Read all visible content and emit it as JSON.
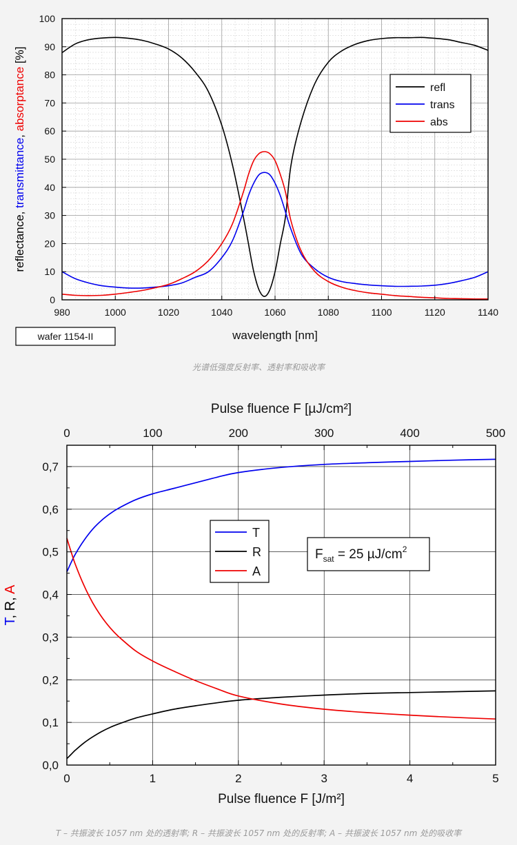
{
  "chart_data": [
    {
      "type": "line",
      "xlabel": "wavelength [nm]",
      "ylabel_parts": [
        {
          "text": "reflectance, ",
          "color": "#000000"
        },
        {
          "text": "transmittance",
          "color": "#0000ee"
        },
        {
          "text": ", ",
          "color": "#000000"
        },
        {
          "text": "absorptance",
          "color": "#ee0000"
        },
        {
          "text": " [%]",
          "color": "#000000"
        }
      ],
      "xlim": [
        980,
        1140
      ],
      "ylim": [
        0,
        100
      ],
      "xticks": [
        980,
        1000,
        1020,
        1040,
        1060,
        1080,
        1100,
        1120,
        1140
      ],
      "yticks": [
        0,
        10,
        20,
        30,
        40,
        50,
        60,
        70,
        80,
        90,
        100
      ],
      "grid": true,
      "legend_position": "top-right",
      "sample_label": "wafer 1154-II",
      "series": [
        {
          "name": "refl",
          "color": "#000000",
          "x": [
            980,
            985,
            990,
            995,
            1000,
            1005,
            1010,
            1015,
            1020,
            1025,
            1030,
            1035,
            1040,
            1044,
            1048,
            1050,
            1052,
            1054,
            1056,
            1058,
            1060,
            1062,
            1064,
            1066,
            1070,
            1075,
            1080,
            1085,
            1090,
            1095,
            1100,
            1105,
            1110,
            1115,
            1120,
            1125,
            1130,
            1135,
            1140
          ],
          "y": [
            87.9,
            91.0,
            92.5,
            93.1,
            93.3,
            93.0,
            92.3,
            91.0,
            89.2,
            86.0,
            81.0,
            74.0,
            62.0,
            48.0,
            30.0,
            20.0,
            10.0,
            3.5,
            1.2,
            3.5,
            10.0,
            20.0,
            30.0,
            48.0,
            64.0,
            77.0,
            84.5,
            88.5,
            90.8,
            92.2,
            92.9,
            93.2,
            93.2,
            93.3,
            93.0,
            92.5,
            91.5,
            90.5,
            88.7
          ]
        },
        {
          "name": "trans",
          "color": "#0000ee",
          "x": [
            980,
            985,
            990,
            995,
            1000,
            1005,
            1010,
            1015,
            1020,
            1025,
            1030,
            1035,
            1040,
            1044,
            1048,
            1050,
            1052,
            1054,
            1056,
            1058,
            1060,
            1062,
            1064,
            1066,
            1070,
            1075,
            1080,
            1085,
            1090,
            1095,
            1100,
            1105,
            1110,
            1115,
            1120,
            1125,
            1130,
            1135,
            1140
          ],
          "y": [
            10.0,
            7.5,
            6.0,
            5.0,
            4.5,
            4.2,
            4.2,
            4.5,
            5.0,
            6.0,
            8.0,
            10.0,
            15.0,
            21.0,
            31.0,
            37.0,
            41.5,
            44.5,
            45.3,
            44.5,
            41.5,
            37.0,
            31.0,
            25.0,
            16.0,
            11.0,
            8.0,
            6.5,
            5.8,
            5.3,
            5.0,
            4.8,
            4.8,
            4.9,
            5.2,
            5.8,
            6.8,
            8.0,
            10.0
          ]
        },
        {
          "name": "abs",
          "color": "#ee0000",
          "x": [
            980,
            985,
            990,
            995,
            1000,
            1005,
            1010,
            1015,
            1020,
            1025,
            1030,
            1035,
            1040,
            1044,
            1048,
            1050,
            1052,
            1054,
            1056,
            1058,
            1060,
            1062,
            1064,
            1066,
            1070,
            1075,
            1080,
            1085,
            1090,
            1095,
            1100,
            1105,
            1110,
            1115,
            1120,
            1125,
            1130,
            1135,
            1140
          ],
          "y": [
            2.0,
            1.6,
            1.5,
            1.6,
            2.0,
            2.6,
            3.3,
            4.3,
            5.5,
            7.5,
            10.0,
            14.0,
            20.0,
            27.0,
            38.0,
            44.5,
            49.5,
            52.0,
            52.7,
            52.0,
            49.5,
            44.5,
            38.0,
            28.0,
            17.0,
            10.0,
            6.5,
            4.5,
            3.3,
            2.5,
            2.0,
            1.5,
            1.2,
            0.9,
            0.7,
            0.5,
            0.4,
            0.3,
            0.3
          ]
        }
      ]
    },
    {
      "type": "line",
      "xlabel": "Pulse fluence F [J/m²]",
      "x2label": "Pulse fluence F [µJ/cm²]",
      "ylabel_parts": [
        {
          "text": "T",
          "color": "#0000ee"
        },
        {
          "text": ", ",
          "color": "#000000"
        },
        {
          "text": "R",
          "color": "#000000"
        },
        {
          "text": ", ",
          "color": "#000000"
        },
        {
          "text": "A",
          "color": "#ee0000"
        }
      ],
      "xlim": [
        0,
        5
      ],
      "x2lim": [
        0,
        500
      ],
      "ylim": [
        0,
        0.75
      ],
      "xticks": [
        0,
        1,
        2,
        3,
        4,
        5
      ],
      "x2ticks": [
        0,
        100,
        200,
        300,
        400,
        500
      ],
      "yticks": [
        "0,0",
        "0,1",
        "0,2",
        "0,3",
        "0,4",
        "0,5",
        "0,6",
        "0,7"
      ],
      "grid": true,
      "legend_position": "center-left",
      "annotation": {
        "prefix": "F",
        "sub": "sat",
        "text": " = 25 µJ/cm",
        "sup": "2"
      },
      "series": [
        {
          "name": "T",
          "color": "#0000ee",
          "x": [
            0,
            0.05,
            0.1,
            0.2,
            0.3,
            0.4,
            0.5,
            0.6,
            0.8,
            1.0,
            1.25,
            1.5,
            1.75,
            2.0,
            2.5,
            3.0,
            3.5,
            4.0,
            4.5,
            5.0
          ],
          "y": [
            0.453,
            0.475,
            0.495,
            0.527,
            0.553,
            0.573,
            0.589,
            0.602,
            0.622,
            0.636,
            0.649,
            0.662,
            0.675,
            0.686,
            0.698,
            0.705,
            0.709,
            0.712,
            0.715,
            0.717
          ]
        },
        {
          "name": "R",
          "color": "#000000",
          "x": [
            0,
            0.05,
            0.1,
            0.2,
            0.3,
            0.4,
            0.5,
            0.6,
            0.8,
            1.0,
            1.25,
            1.5,
            1.75,
            2.0,
            2.5,
            3.0,
            3.5,
            4.0,
            4.5,
            5.0
          ],
          "y": [
            0.015,
            0.025,
            0.035,
            0.052,
            0.066,
            0.078,
            0.088,
            0.096,
            0.11,
            0.12,
            0.131,
            0.139,
            0.146,
            0.152,
            0.159,
            0.164,
            0.168,
            0.17,
            0.172,
            0.174
          ]
        },
        {
          "name": "A",
          "color": "#ee0000",
          "x": [
            0,
            0.05,
            0.1,
            0.2,
            0.3,
            0.4,
            0.5,
            0.6,
            0.8,
            1.0,
            1.25,
            1.5,
            1.75,
            2.0,
            2.5,
            3.0,
            3.5,
            4.0,
            4.5,
            5.0
          ],
          "y": [
            0.532,
            0.5,
            0.47,
            0.421,
            0.381,
            0.349,
            0.323,
            0.302,
            0.268,
            0.244,
            0.22,
            0.198,
            0.179,
            0.162,
            0.143,
            0.131,
            0.123,
            0.117,
            0.112,
            0.108
          ]
        }
      ]
    }
  ],
  "captions": [
    "光谱低强度反射率、透射率和吸收率",
    "T – 共振波长 1057 nm 处的透射率; R – 共振波长 1057 nm 处的反射率; A – 共振波长 1057 nm 处的吸收率"
  ]
}
